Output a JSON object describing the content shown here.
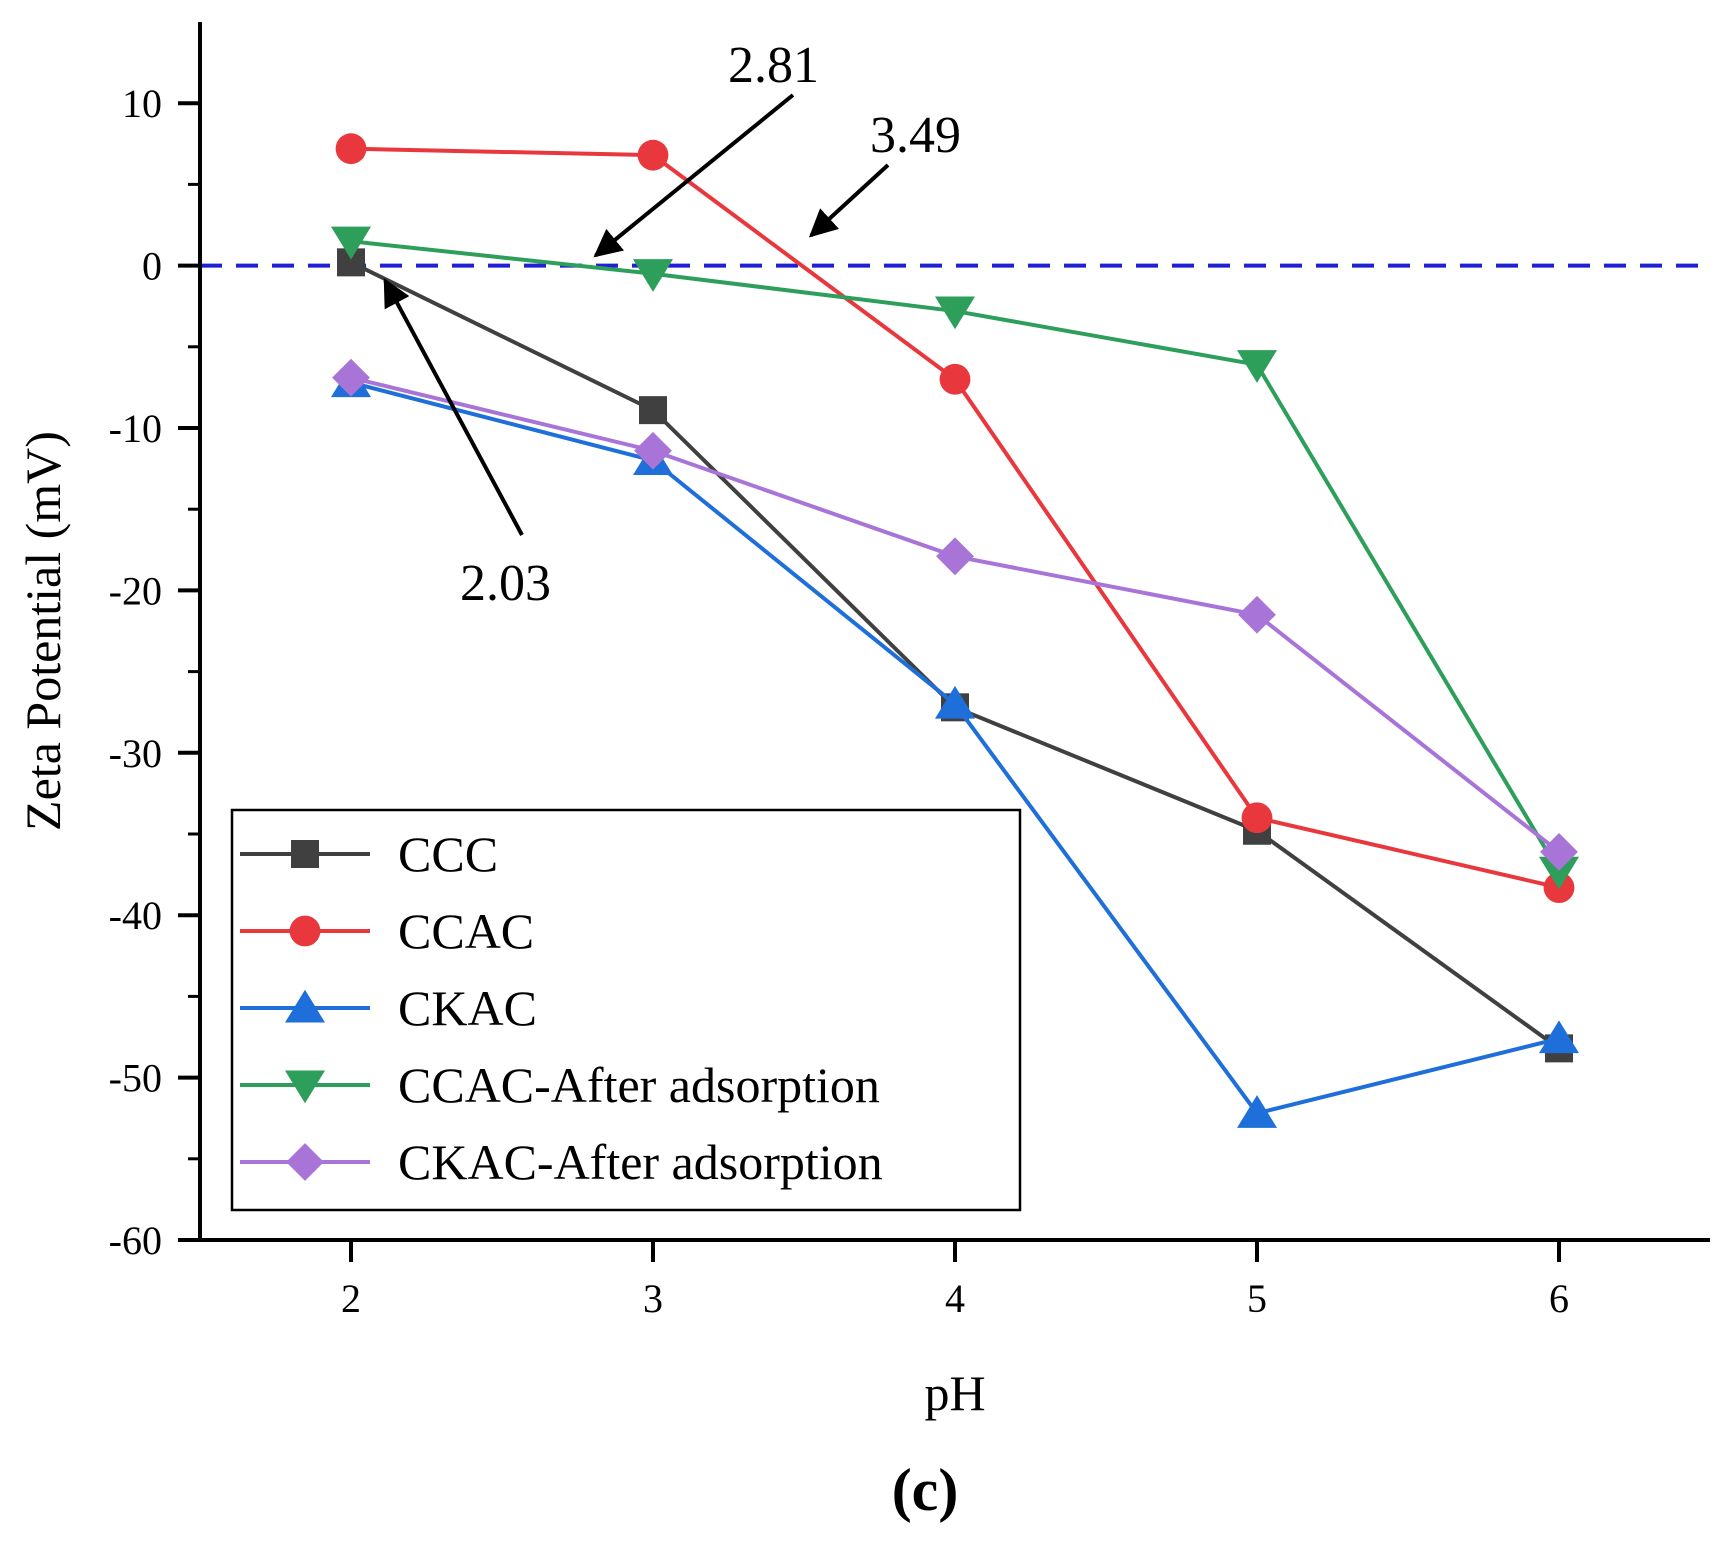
{
  "chart_data": {
    "type": "line",
    "xlabel": "pH",
    "ylabel": "Zeta Potential (mV)",
    "xlim": [
      1.5,
      6.5
    ],
    "ylim": [
      -60,
      15
    ],
    "x_ticks": [
      2,
      3,
      4,
      5,
      6
    ],
    "y_ticks": [
      -60,
      -50,
      -40,
      -30,
      -20,
      -10,
      0,
      10
    ],
    "zero_line": {
      "y": 0,
      "color": "#1f1fd6",
      "style": "dashed"
    },
    "legend_position": "bottom-left",
    "x": [
      2,
      3,
      4,
      5,
      6
    ],
    "series": [
      {
        "name": "CCC",
        "color": "#404040",
        "marker": "square",
        "values": [
          0.2,
          -8.9,
          -27.2,
          -34.8,
          -48.2
        ]
      },
      {
        "name": "CCAC",
        "color": "#e8383d",
        "marker": "circle",
        "values": [
          7.2,
          6.8,
          -7.0,
          -34.0,
          -38.3
        ]
      },
      {
        "name": "CKAC",
        "color": "#1f6fdb",
        "marker": "triangle-up",
        "values": [
          -7.2,
          -12.0,
          -27.0,
          -52.2,
          -47.6
        ]
      },
      {
        "name": "CCAC-After adsorption",
        "color": "#2e9e5b",
        "marker": "triangle-down",
        "values": [
          1.5,
          -0.5,
          -2.8,
          -6.1,
          -37.3
        ]
      },
      {
        "name": "CKAC-After adsorption",
        "color": "#a874d8",
        "marker": "diamond",
        "values": [
          -6.9,
          -11.4,
          -17.9,
          -21.5,
          -36.1
        ]
      }
    ],
    "annotations": [
      {
        "text": "2.81",
        "x": 2.81,
        "y": 0
      },
      {
        "text": "3.49",
        "x": 3.49,
        "y": 0
      },
      {
        "text": "2.03",
        "x": 2.03,
        "y": 0
      }
    ],
    "panel_label": "(c)"
  }
}
